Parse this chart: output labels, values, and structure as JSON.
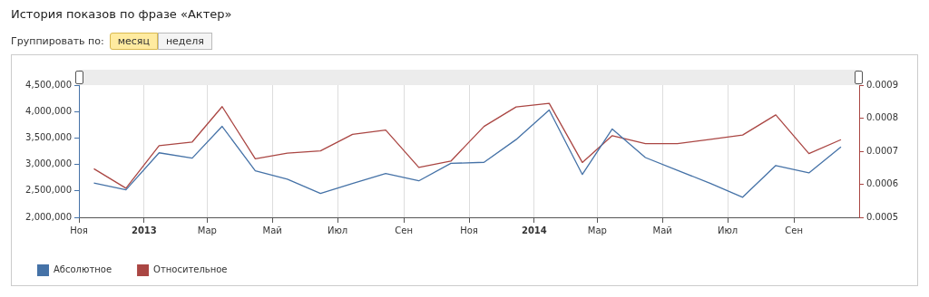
{
  "chart_data": {
    "type": "line",
    "title": "История показов по фразе «Актер»",
    "annotations": [
      "Группировать по:",
      "месяц",
      "неделя"
    ],
    "x": [
      "2012-11-15",
      "2012-12-15",
      "2013-01-15",
      "2013-02-15",
      "2013-03-15",
      "2013-04-15",
      "2013-05-15",
      "2013-06-15",
      "2013-07-15",
      "2013-08-15",
      "2013-09-15",
      "2013-10-15",
      "2013-11-15",
      "2013-12-15",
      "2014-01-15",
      "2014-02-15",
      "2014-03-15",
      "2014-04-15",
      "2014-05-15",
      "2014-06-15",
      "2014-07-15",
      "2014-08-15",
      "2014-09-15",
      "2014-10-15"
    ],
    "series": [
      {
        "name": "Абсолютное",
        "color": "#4572a7",
        "values": [
          2650000,
          2520000,
          3220000,
          3120000,
          3720000,
          2880000,
          2720000,
          2450000,
          2640000,
          2830000,
          2690000,
          3020000,
          3040000,
          3470000,
          4030000,
          2810000,
          3670000,
          3130000,
          2890000,
          2640000,
          2380000,
          2980000,
          2840000,
          3330000
        ]
      },
      {
        "name": "Относительное",
        "color": "#aa4643",
        "axis": "y2",
        "values": [
          0.000647,
          0.000588,
          0.000717,
          0.000728,
          0.000835,
          0.000677,
          0.000694,
          0.000701,
          0.000751,
          0.000764,
          0.000651,
          0.00067,
          0.000775,
          0.000834,
          0.000845,
          0.000666,
          0.000747,
          0.000723,
          0.000723,
          0.000736,
          0.000749,
          0.00081,
          0.000693,
          0.000735
        ]
      }
    ],
    "xlim": [
      "2012-11-01",
      "2014-11-01"
    ],
    "xticks": [
      {
        "value": "2012-11-01",
        "label": "Ноя"
      },
      {
        "value": "2013-01-01",
        "label": "2013"
      },
      {
        "value": "2013-03-01",
        "label": "Мар"
      },
      {
        "value": "2013-05-01",
        "label": "Май"
      },
      {
        "value": "2013-07-01",
        "label": "Июл"
      },
      {
        "value": "2013-09-01",
        "label": "Сен"
      },
      {
        "value": "2013-11-01",
        "label": "Ноя"
      },
      {
        "value": "2014-01-01",
        "label": "2014"
      },
      {
        "value": "2014-03-01",
        "label": "Мар"
      },
      {
        "value": "2014-05-01",
        "label": "Май"
      },
      {
        "value": "2014-07-01",
        "label": "Июл"
      },
      {
        "value": "2014-09-01",
        "label": "Сен"
      }
    ],
    "ylim": [
      2000000,
      4500000
    ],
    "yticks": [
      {
        "value": 2000000,
        "label": "2,000,000"
      },
      {
        "value": 2500000,
        "label": "2,500,000"
      },
      {
        "value": 3000000,
        "label": "3,000,000"
      },
      {
        "value": 3500000,
        "label": "3,500,000"
      },
      {
        "value": 4000000,
        "label": "4,000,000"
      },
      {
        "value": 4500000,
        "label": "4,500,000"
      }
    ],
    "y2lim": [
      0.0005,
      0.0009
    ],
    "y2ticks": [
      0.0005,
      0.0006,
      0.0007,
      0.0008,
      0.0009
    ],
    "grid": "x",
    "legend": "bottom left",
    "marker": "none",
    "line_style": "solid"
  }
}
